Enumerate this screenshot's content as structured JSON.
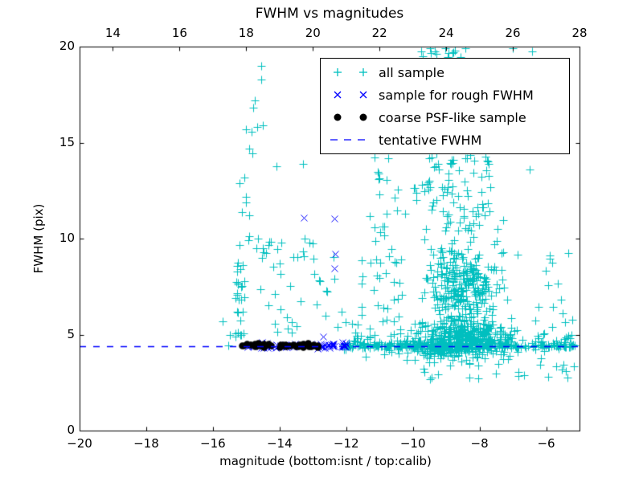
{
  "title": "FWHM vs magnitudes",
  "axes": {
    "xlabel": "magnitude (bottom:isnt / top:calib)",
    "ylabel": "FWHM (pix)",
    "xlim": [
      -20,
      -5
    ],
    "ylim": [
      0,
      20
    ],
    "x_ticks_bottom": {
      "values": [
        -20,
        -18,
        -16,
        -14,
        -12,
        -10,
        -8,
        -6
      ],
      "labels": [
        "−20",
        "−18",
        "−16",
        "−14",
        "−12",
        "−10",
        "−8",
        "−6"
      ]
    },
    "x_ticks_top": {
      "values_calib": [
        14,
        16,
        18,
        20,
        22,
        24,
        26,
        28
      ],
      "labels": [
        "14",
        "16",
        "18",
        "20",
        "22",
        "24",
        "26",
        "28"
      ],
      "calib_offset_from_isnt": 33
    },
    "y_ticks": {
      "values": [
        0,
        5,
        10,
        15,
        20
      ],
      "labels": [
        "0",
        "5",
        "10",
        "15",
        "20"
      ]
    }
  },
  "legend": {
    "entries": [
      {
        "label": "all sample",
        "marker": "plus",
        "color": "#00bfbf"
      },
      {
        "label": "sample for rough FWHM",
        "marker": "x",
        "color": "#0000ff"
      },
      {
        "label": "coarse PSF-like sample",
        "marker": "circle",
        "color": "#000000"
      },
      {
        "label": "tentative FWHM",
        "marker": "dashed",
        "color": "#0000ff"
      }
    ]
  },
  "chart_data": {
    "type": "scatter",
    "title": "FWHM vs magnitudes",
    "xlabel": "magnitude (bottom:isnt / top:calib)",
    "ylabel": "FWHM (pix)",
    "xlim": [
      -20,
      -5
    ],
    "ylim": [
      0,
      20
    ],
    "grid": false,
    "legend_position": "upper right",
    "seed": 42,
    "series": [
      {
        "name": "all sample",
        "marker": "plus",
        "color": "#00bfbf",
        "clusters": [
          {
            "n": 26,
            "x": [
              -15.33,
              -15.02
            ],
            "y": [
              4.85,
              9.25
            ]
          },
          {
            "n": 6,
            "x": [
              -15.25,
              -14.9
            ],
            "y": [
              9.6,
              13.3
            ]
          },
          {
            "n": 13,
            "x": [
              -14.75,
              -13.95
            ],
            "y": [
              8.2,
              10.0
            ]
          },
          {
            "n": 26,
            "x": [
              -14.6,
              -11.75
            ],
            "y": [
              5.0,
              8.2
            ]
          },
          {
            "n": 9,
            "x": [
              -14.0,
              -12.2
            ],
            "y": [
              8.2,
              10.8
            ]
          },
          {
            "n": 34,
            "x": [
              -11.75,
              -10.3
            ],
            "y": [
              4.7,
              9.5
            ]
          },
          {
            "n": 9,
            "x": [
              -11.55,
              -10.2
            ],
            "y": [
              9.5,
              12.0
            ]
          },
          {
            "n": 470,
            "x": {
              "mu": -8.55,
              "sd": 0.75,
              "clip": [
                -10.5,
                -6.2
              ]
            },
            "y": {
              "mu": 4.75,
              "sd": 0.6,
              "clip": [
                3.35,
                6.2
              ]
            }
          },
          {
            "n": 255,
            "x": {
              "mu": -8.5,
              "sd": 0.62,
              "clip": [
                -10.2,
                -6.6
              ]
            },
            "y": {
              "mu": 7.4,
              "sd": 1.15,
              "clip": [
                6.2,
                10.4
              ]
            }
          },
          {
            "n": 66,
            "x": {
              "mu": -8.65,
              "sd": 0.66,
              "clip": [
                -10.3,
                -7.0
              ]
            },
            "y": {
              "mu": 11.6,
              "sd": 1.4,
              "clip": [
                10.4,
                14.6
              ]
            }
          },
          {
            "n": 10,
            "x": [
              -11.5,
              -10.25
            ],
            "y": [
              11.9,
              14.3
            ]
          },
          {
            "n": 250,
            "x": [
              -12.15,
              -5.12
            ],
            "y": {
              "mu": 4.42,
              "sd": 0.09,
              "clip": [
                4.15,
                4.75
              ]
            }
          },
          {
            "n": 55,
            "x": [
              -11.9,
              -9.2
            ],
            "y": {
              "mu": 4.45,
              "sd": 0.28,
              "clip": [
                3.6,
                5.3
              ]
            }
          },
          {
            "n": 26,
            "x": [
              -6.35,
              -5.1
            ],
            "y": [
              3.3,
              6.2
            ]
          },
          {
            "n": 10,
            "x": [
              -6.9,
              -5.3
            ],
            "y": [
              6.4,
              9.3
            ]
          },
          {
            "n": 15,
            "x": [
              -9.7,
              -5.3
            ],
            "y": [
              2.65,
              3.6
            ]
          },
          {
            "n": 13,
            "x": [
              -9.75,
              -8.35
            ],
            "y": [
              19.45,
              20.0
            ]
          },
          {
            "n": 22,
            "x": [
              -9.7,
              -7.5
            ],
            "y": [
              12.6,
              14.5
            ]
          }
        ],
        "points": [
          [
            -14.55,
            19.0
          ],
          [
            -14.55,
            18.3
          ],
          [
            -14.75,
            17.2
          ],
          [
            -14.8,
            16.8
          ],
          [
            -15.0,
            15.7
          ],
          [
            -14.85,
            15.55
          ],
          [
            -14.68,
            15.8
          ],
          [
            -14.5,
            15.9
          ],
          [
            -14.9,
            14.7
          ],
          [
            -14.82,
            14.45
          ],
          [
            -15.05,
            13.2
          ],
          [
            -15.2,
            12.9
          ],
          [
            -15.0,
            11.9
          ],
          [
            -14.1,
            13.75
          ],
          [
            -13.3,
            13.9
          ],
          [
            -7.0,
            19.9
          ],
          [
            -6.42,
            19.75
          ],
          [
            -8.42,
            19.9
          ],
          [
            -6.5,
            13.6
          ],
          [
            -7.75,
            14.0
          ],
          [
            -15.7,
            5.7
          ],
          [
            -15.5,
            5.0
          ],
          [
            -15.32,
            4.9
          ],
          [
            -15.55,
            4.45
          ],
          [
            -8.05,
            2.7
          ],
          [
            -5.35,
            2.75
          ]
        ]
      },
      {
        "name": "sample for rough FWHM",
        "marker": "x",
        "color": "#0000ff",
        "clusters": [
          {
            "n": 85,
            "x": [
              -15.1,
              -12.0
            ],
            "y": {
              "mu": 4.42,
              "sd": 0.07,
              "clip": [
                4.2,
                4.65
              ]
            }
          }
        ],
        "points": [
          [
            -13.28,
            11.1
          ],
          [
            -12.36,
            11.05
          ],
          [
            -12.33,
            9.2
          ],
          [
            -12.35,
            8.45
          ],
          [
            -12.7,
            4.88
          ]
        ]
      },
      {
        "name": "coarse PSF-like sample",
        "marker": "circle",
        "color": "#000000",
        "clusters": [
          {
            "n": 48,
            "x": [
              -15.15,
              -12.82
            ],
            "y": {
              "mu": 4.45,
              "sd": 0.05,
              "clip": [
                4.3,
                4.6
              ]
            }
          }
        ],
        "points": []
      },
      {
        "name": "tentative FWHM",
        "type": "hline",
        "y": 4.4,
        "style": "dashed",
        "color": "#0000ff"
      }
    ]
  }
}
